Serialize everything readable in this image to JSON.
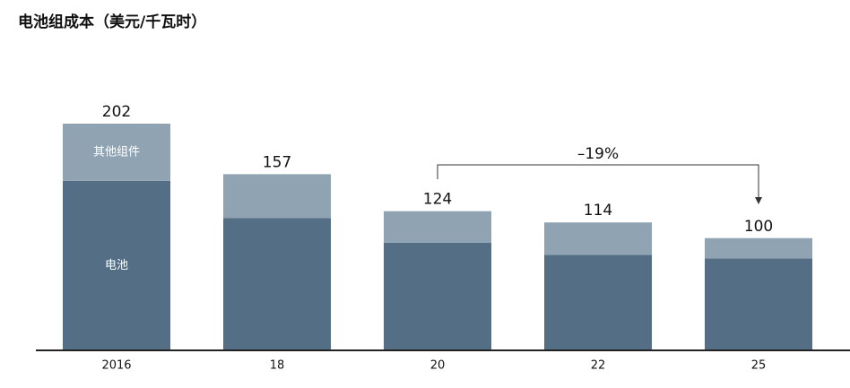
{
  "chart_data": {
    "type": "stacked_bar",
    "title": "电池组成本（美元/千瓦时）",
    "categories": [
      "2016",
      "18",
      "20",
      "22",
      "25"
    ],
    "series": [
      {
        "name": "电池",
        "color": "#546e85",
        "values": [
          151,
          118,
          96,
          85,
          82
        ]
      },
      {
        "name": "其他组件",
        "color": "#8fa3b3",
        "values": [
          51,
          39,
          28,
          29,
          18
        ]
      }
    ],
    "totals": [
      202,
      157,
      124,
      114,
      100
    ],
    "annotation": "–19%"
  }
}
